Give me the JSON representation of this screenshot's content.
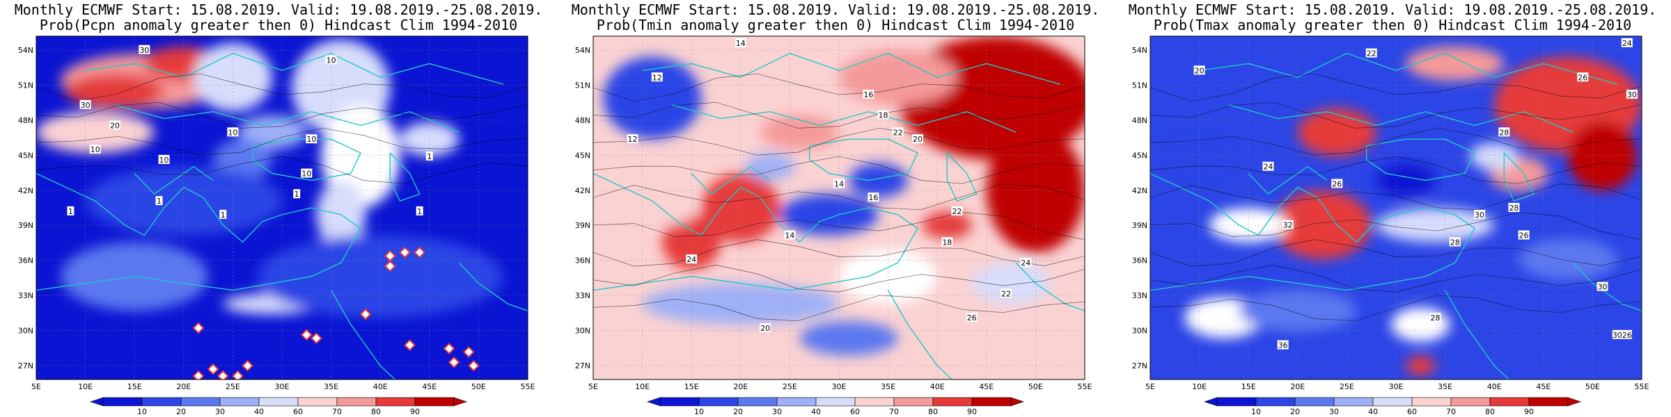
{
  "colors": {
    "deep_blue": "#0a14d2",
    "blue": "#2b45e6",
    "mid_blue": "#5c78f0",
    "light_blue": "#9fb0f7",
    "pale_blue": "#d7ddfb",
    "white": "#ffffff",
    "pale_red": "#fbd2d2",
    "light_red": "#f59a9a",
    "red": "#e63a3a",
    "dark_red": "#bf0000",
    "coast": "#20c8c8",
    "contour": "#000000"
  },
  "axes": {
    "lon_labels": [
      "5E",
      "10E",
      "15E",
      "20E",
      "25E",
      "30E",
      "35E",
      "40E",
      "45E",
      "50E",
      "55E"
    ],
    "lat_labels": [
      "54N",
      "51N",
      "48N",
      "45N",
      "42N",
      "39N",
      "36N",
      "33N",
      "30N",
      "27N"
    ]
  },
  "colorbar": {
    "ticks": [
      "10",
      "20",
      "30",
      "40",
      "60",
      "70",
      "80",
      "90"
    ]
  },
  "panels": [
    {
      "title_line1": "Monthly ECMWF Start: 15.08.2019. Valid: 19.08.2019.-25.08.2019.",
      "title_line2": "Prob(Pcpn anomaly greater then 0) Hindcast Clim 1994-2010",
      "contour_labels": [
        "30",
        "10",
        "30",
        "20",
        "10",
        "10",
        "10",
        "1",
        "10",
        "10",
        "1",
        "1",
        "1",
        "1",
        "1"
      ],
      "diamonds": 18
    },
    {
      "title_line1": "Monthly ECMWF Start: 15.08.2019. Valid: 19.08.2019.-25.08.2019.",
      "title_line2": "Prob(Tmin anomaly greater then 0) Hindcast Clim 1994-2010",
      "contour_labels": [
        "14",
        "12",
        "16",
        "18",
        "20",
        "22",
        "14",
        "16",
        "22",
        "24",
        "18",
        "14",
        "20",
        "12",
        "24",
        "26",
        "22"
      ],
      "diamonds": 0
    },
    {
      "title_line1": "Monthly ECMWF Start: 15.08.2019. Valid: 19.08.2019.-25.08.2019.",
      "title_line2": "Prob(Tmax anomaly greater then 0) Hindcast Clim 1994-2010",
      "contour_labels": [
        "24",
        "22",
        "20",
        "26",
        "28",
        "30",
        "24",
        "26",
        "28",
        "32",
        "30",
        "26",
        "28",
        "30",
        "36",
        "28",
        "3026"
      ],
      "diamonds": 0
    }
  ]
}
